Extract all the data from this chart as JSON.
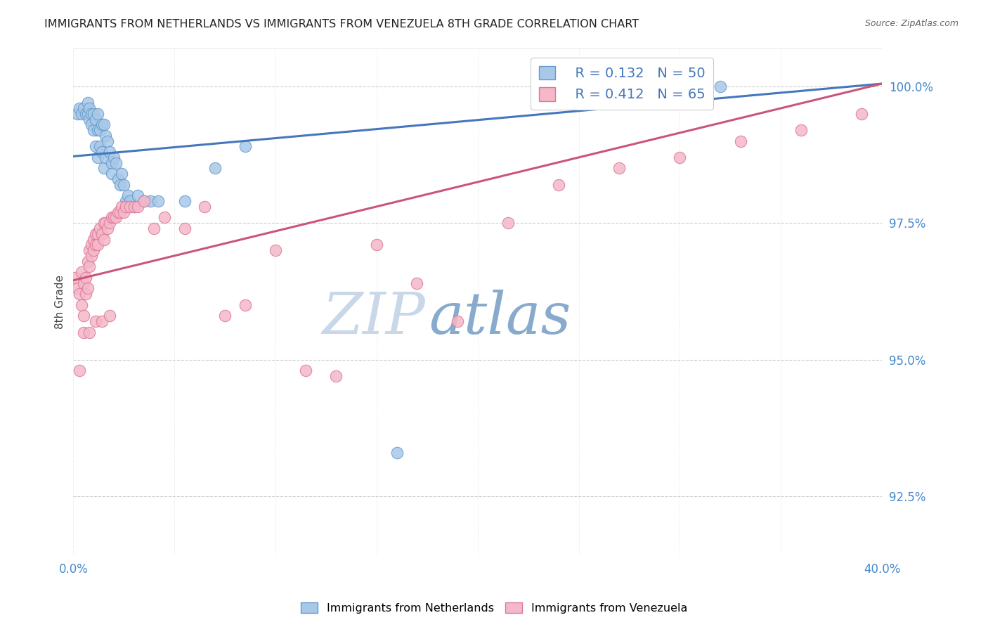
{
  "title": "IMMIGRANTS FROM NETHERLANDS VS IMMIGRANTS FROM VENEZUELA 8TH GRADE CORRELATION CHART",
  "source": "Source: ZipAtlas.com",
  "ylabel": "8th Grade",
  "y_ticks": [
    92.5,
    95.0,
    97.5,
    100.0
  ],
  "blue_R": 0.132,
  "blue_N": 50,
  "pink_R": 0.412,
  "pink_N": 65,
  "blue_color": "#a8c8e8",
  "pink_color": "#f4b8c8",
  "blue_edge_color": "#6699cc",
  "pink_edge_color": "#dd7799",
  "blue_line_color": "#4477bb",
  "pink_line_color": "#cc5577",
  "right_tick_color": "#4488cc",
  "watermark_zip_color": "#c8d8e8",
  "watermark_atlas_color": "#88aacc",
  "blue_line_x0": 0.0,
  "blue_line_y0": 98.72,
  "blue_line_x1": 0.4,
  "blue_line_y1": 100.05,
  "pink_line_x0": 0.0,
  "pink_line_y0": 96.45,
  "pink_line_x1": 0.4,
  "pink_line_y1": 100.05,
  "x_min": 0.0,
  "x_max": 0.4,
  "y_min": 91.4,
  "y_max": 100.7,
  "blue_scatter_x": [
    0.002,
    0.003,
    0.004,
    0.005,
    0.006,
    0.007,
    0.007,
    0.008,
    0.008,
    0.009,
    0.009,
    0.01,
    0.01,
    0.011,
    0.011,
    0.012,
    0.012,
    0.012,
    0.013,
    0.013,
    0.014,
    0.014,
    0.015,
    0.015,
    0.016,
    0.016,
    0.017,
    0.018,
    0.019,
    0.019,
    0.02,
    0.021,
    0.022,
    0.023,
    0.024,
    0.025,
    0.026,
    0.027,
    0.028,
    0.03,
    0.032,
    0.035,
    0.038,
    0.042,
    0.055,
    0.07,
    0.085,
    0.16,
    0.245,
    0.32
  ],
  "blue_scatter_y": [
    99.5,
    99.6,
    99.5,
    99.6,
    99.5,
    99.7,
    99.5,
    99.6,
    99.4,
    99.5,
    99.3,
    99.5,
    99.2,
    99.4,
    98.9,
    99.5,
    99.2,
    98.7,
    99.2,
    98.9,
    99.3,
    98.8,
    99.3,
    98.5,
    99.1,
    98.7,
    99.0,
    98.8,
    98.6,
    98.4,
    98.7,
    98.6,
    98.3,
    98.2,
    98.4,
    98.2,
    97.9,
    98.0,
    97.9,
    97.8,
    98.0,
    97.9,
    97.9,
    97.9,
    97.9,
    98.5,
    98.9,
    93.3,
    100.0,
    100.0
  ],
  "pink_scatter_x": [
    0.001,
    0.002,
    0.003,
    0.004,
    0.004,
    0.005,
    0.005,
    0.006,
    0.006,
    0.007,
    0.007,
    0.008,
    0.008,
    0.009,
    0.009,
    0.01,
    0.01,
    0.011,
    0.011,
    0.012,
    0.012,
    0.013,
    0.014,
    0.015,
    0.015,
    0.016,
    0.017,
    0.018,
    0.019,
    0.02,
    0.021,
    0.022,
    0.023,
    0.024,
    0.025,
    0.026,
    0.028,
    0.03,
    0.032,
    0.035,
    0.04,
    0.045,
    0.055,
    0.065,
    0.075,
    0.085,
    0.1,
    0.115,
    0.13,
    0.15,
    0.17,
    0.19,
    0.215,
    0.24,
    0.27,
    0.3,
    0.33,
    0.36,
    0.39,
    0.003,
    0.005,
    0.008,
    0.011,
    0.014,
    0.018
  ],
  "pink_scatter_y": [
    96.5,
    96.3,
    96.2,
    96.6,
    96.0,
    96.4,
    95.8,
    96.5,
    96.2,
    96.8,
    96.3,
    97.0,
    96.7,
    97.1,
    96.9,
    97.2,
    97.0,
    97.3,
    97.1,
    97.3,
    97.1,
    97.4,
    97.3,
    97.5,
    97.2,
    97.5,
    97.4,
    97.5,
    97.6,
    97.6,
    97.6,
    97.7,
    97.7,
    97.8,
    97.7,
    97.8,
    97.8,
    97.8,
    97.8,
    97.9,
    97.4,
    97.6,
    97.4,
    97.8,
    95.8,
    96.0,
    97.0,
    94.8,
    94.7,
    97.1,
    96.4,
    95.7,
    97.5,
    98.2,
    98.5,
    98.7,
    99.0,
    99.2,
    99.5,
    94.8,
    95.5,
    95.5,
    95.7,
    95.7,
    95.8
  ]
}
